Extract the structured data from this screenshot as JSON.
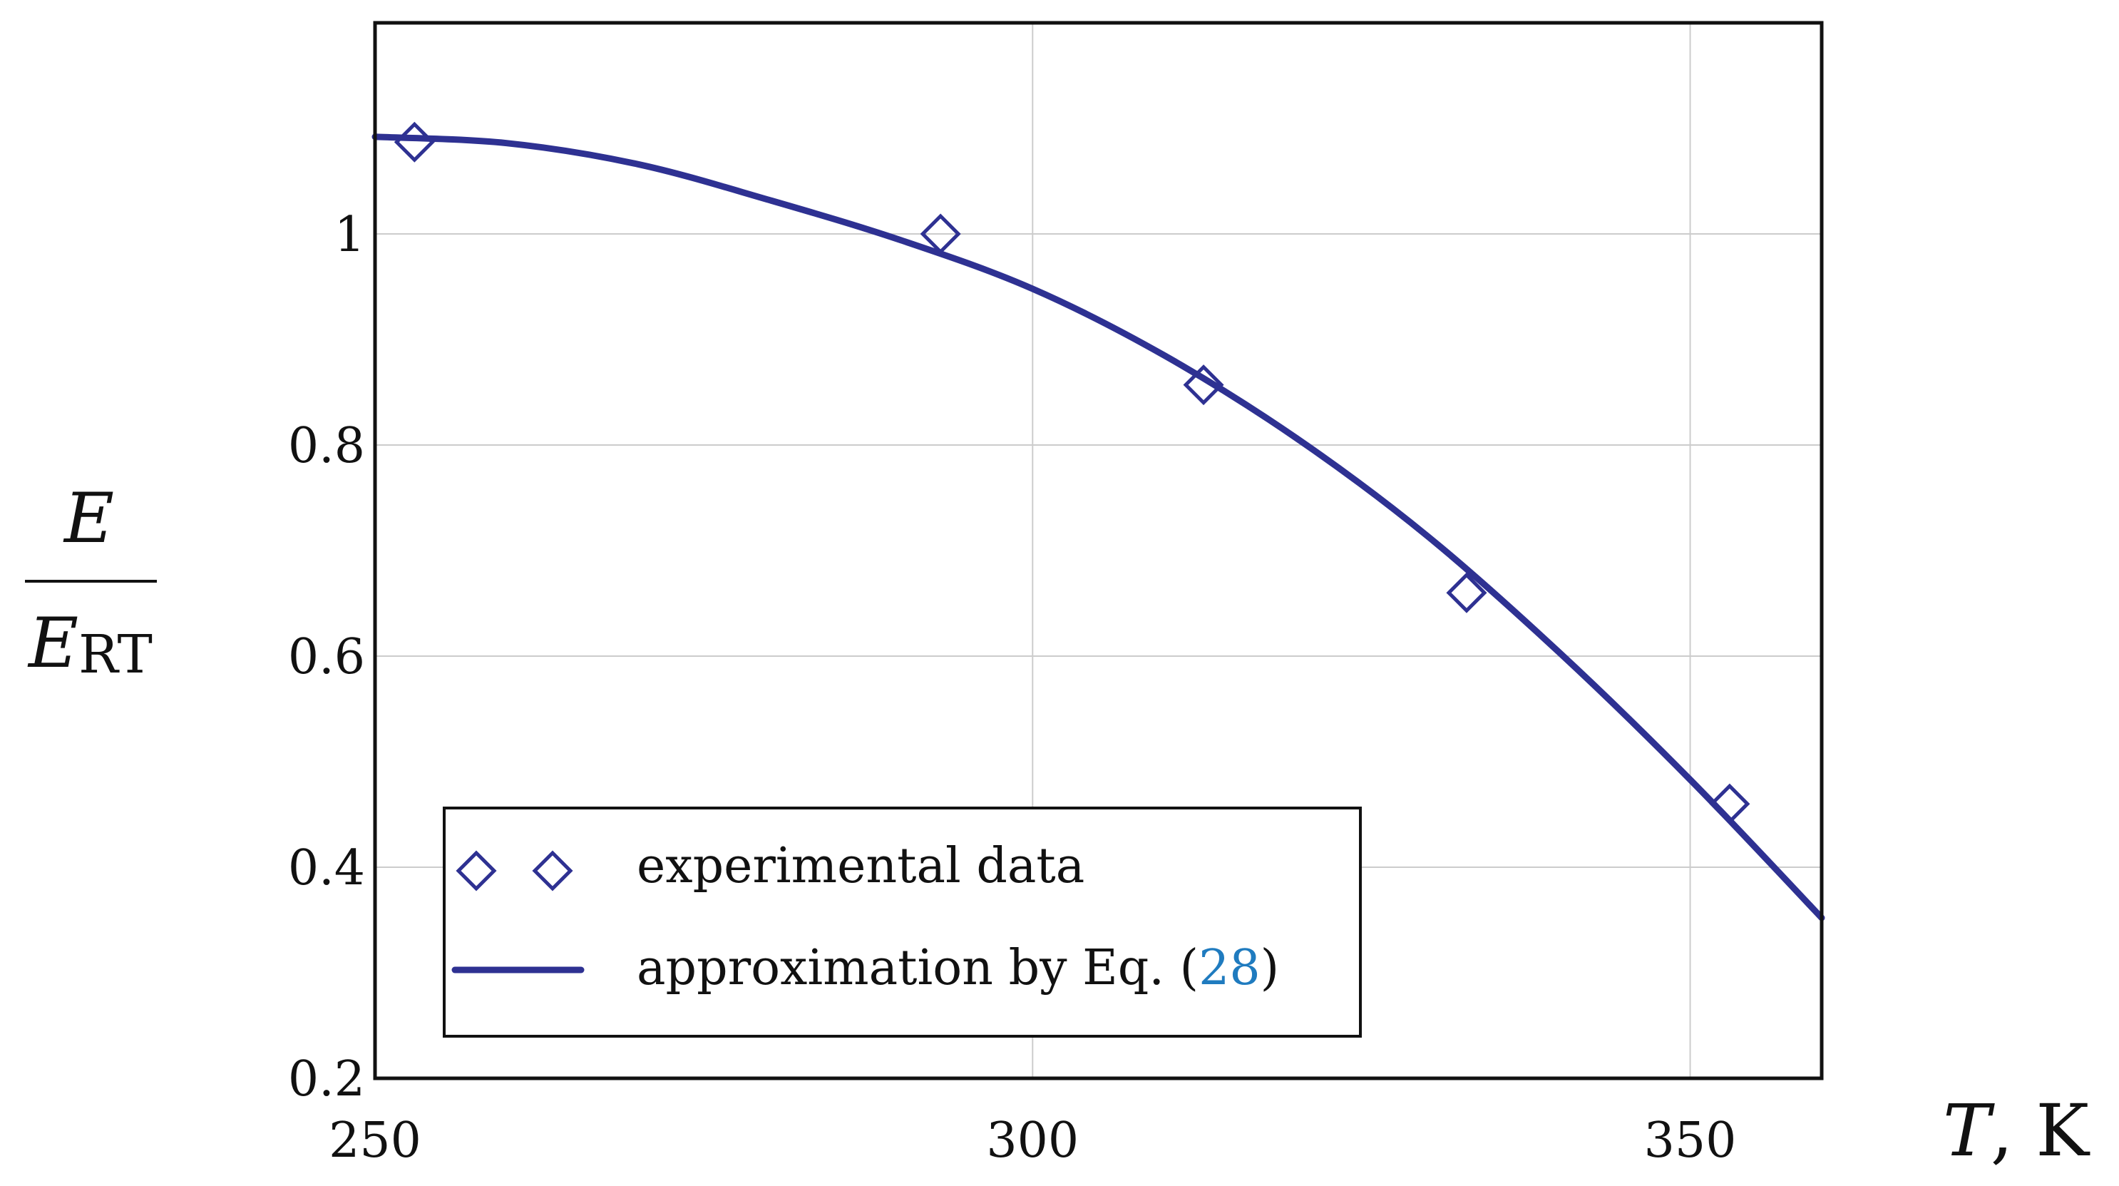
{
  "chart_data": {
    "type": "scatter",
    "title": "",
    "xlabel": {
      "var": "T",
      "sep": ", ",
      "unit": "K"
    },
    "ylabel": {
      "numerator": "E",
      "denominator": "E",
      "subscript": "RT"
    },
    "xlim": [
      250,
      360
    ],
    "ylim": [
      0.2,
      1.2
    ],
    "x_ticks": [
      "250",
      "300",
      "350"
    ],
    "x_tick_values": [
      250,
      300,
      350
    ],
    "y_ticks": [
      "0.2",
      "0.4",
      "0.6",
      "0.8",
      "1"
    ],
    "y_tick_values": [
      0.2,
      0.4,
      0.6,
      0.8,
      1.0
    ],
    "grid": true,
    "series": [
      {
        "name": "experimental data",
        "kind": "markers",
        "marker": "diamond",
        "x": [
          253,
          293,
          313,
          333,
          353
        ],
        "y": [
          1.087,
          1.0,
          0.857,
          0.66,
          0.46
        ]
      },
      {
        "name": "approximation by Eq. (28)",
        "kind": "line",
        "x": [
          250,
          260,
          270,
          280,
          290,
          300,
          310,
          320,
          330,
          340,
          350,
          360
        ],
        "y": [
          1.092,
          1.086,
          1.066,
          1.032,
          0.994,
          0.948,
          0.885,
          0.807,
          0.714,
          0.604,
          0.483,
          0.352
        ]
      }
    ],
    "legend": {
      "position": "bottom-left",
      "entries": [
        {
          "label": "experimental data"
        },
        {
          "label_prefix": "approximation by Eq. (",
          "ref": "28",
          "label_suffix": ")"
        }
      ]
    }
  },
  "colors": {
    "series": "#2e3192",
    "grid": "#cccccc",
    "frame": "#111111",
    "ref_link": "#1f7bbf"
  }
}
